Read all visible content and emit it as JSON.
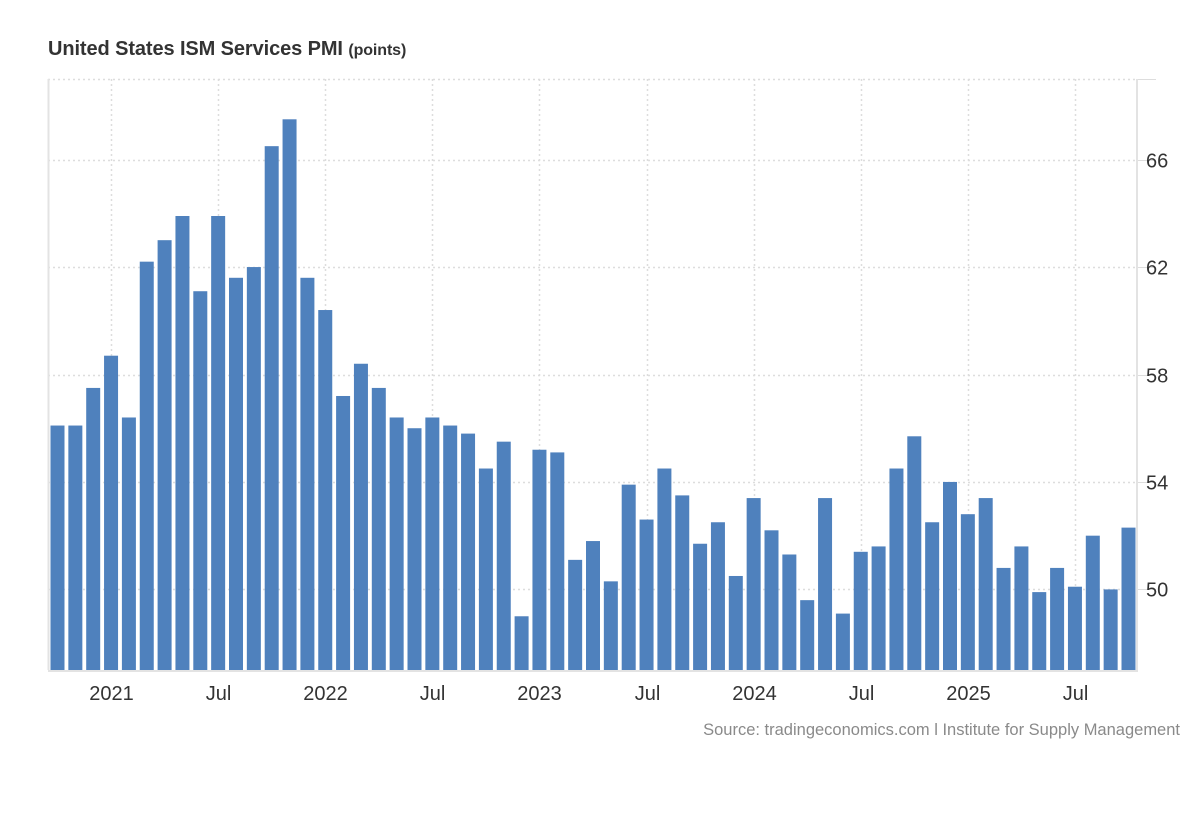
{
  "chart_data": {
    "type": "bar",
    "title": "United States ISM Services PMI",
    "unit": "(points)",
    "xlabel": "",
    "ylabel": "",
    "ylim": [
      47,
      69
    ],
    "y_ticks": [
      50,
      54,
      58,
      62,
      66
    ],
    "y_axis_side": "right",
    "grid": true,
    "legend": "none",
    "bar_color": "#4f81bd",
    "start_month": "2020-10",
    "x": [
      "2020-10",
      "2020-11",
      "2020-12",
      "2021-01",
      "2021-02",
      "2021-03",
      "2021-04",
      "2021-05",
      "2021-06",
      "2021-07",
      "2021-08",
      "2021-09",
      "2021-10",
      "2021-11",
      "2021-12",
      "2022-01",
      "2022-02",
      "2022-03",
      "2022-04",
      "2022-05",
      "2022-06",
      "2022-07",
      "2022-08",
      "2022-09",
      "2022-10",
      "2022-11",
      "2022-12",
      "2023-01",
      "2023-02",
      "2023-03",
      "2023-04",
      "2023-05",
      "2023-06",
      "2023-07",
      "2023-08",
      "2023-09",
      "2023-10",
      "2023-11",
      "2023-12",
      "2024-01",
      "2024-02",
      "2024-03",
      "2024-04",
      "2024-05",
      "2024-06",
      "2024-07",
      "2024-08",
      "2024-09",
      "2024-10",
      "2024-11",
      "2024-12",
      "2025-01",
      "2025-02",
      "2025-03",
      "2025-04",
      "2025-05",
      "2025-06",
      "2025-07",
      "2025-08",
      "2025-09",
      "2025-10"
    ],
    "values": [
      56.1,
      56.1,
      57.5,
      58.7,
      56.4,
      62.2,
      63.0,
      63.9,
      61.1,
      63.9,
      61.6,
      62.0,
      66.5,
      67.5,
      61.6,
      60.4,
      57.2,
      58.4,
      57.5,
      56.4,
      56.0,
      56.4,
      56.1,
      55.8,
      54.5,
      55.5,
      49.0,
      55.2,
      55.1,
      51.1,
      51.8,
      50.3,
      53.9,
      52.6,
      54.5,
      53.5,
      51.7,
      52.5,
      50.5,
      53.4,
      52.2,
      51.3,
      49.6,
      53.4,
      49.1,
      51.4,
      51.6,
      54.5,
      55.7,
      52.5,
      54.0,
      52.8,
      53.4,
      50.8,
      51.6,
      49.9,
      50.8,
      50.1,
      52.0,
      50.0,
      52.3
    ],
    "x_tick_labels": [
      {
        "label": "2021",
        "month": "2021-01"
      },
      {
        "label": "Jul",
        "month": "2021-07"
      },
      {
        "label": "2022",
        "month": "2022-01"
      },
      {
        "label": "Jul",
        "month": "2022-07"
      },
      {
        "label": "2023",
        "month": "2023-01"
      },
      {
        "label": "Jul",
        "month": "2023-07"
      },
      {
        "label": "2024",
        "month": "2024-01"
      },
      {
        "label": "Jul",
        "month": "2024-07"
      },
      {
        "label": "2025",
        "month": "2025-01"
      },
      {
        "label": "Jul",
        "month": "2025-07"
      }
    ],
    "source": "Source: tradingeconomics.com l Institute for Supply Management"
  }
}
